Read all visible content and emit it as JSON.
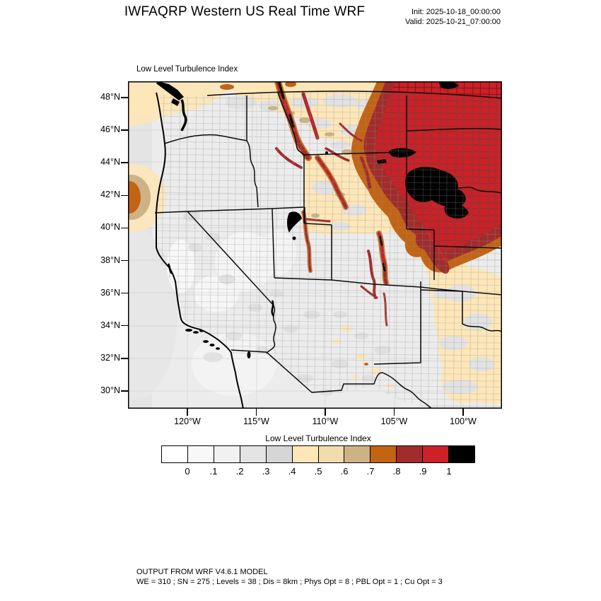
{
  "header": {
    "title": "IWFAQRP Western US Real Time WRF",
    "init_time": "Init: 2025-10-18_00:00:00",
    "valid_time": "Valid: 2025-10-21_07:00:00"
  },
  "map": {
    "field_label": "Low Level Turbulence Index",
    "lat_ticks": [
      "48°N",
      "46°N",
      "44°N",
      "42°N",
      "40°N",
      "38°N",
      "36°N",
      "34°N",
      "32°N",
      "30°N"
    ],
    "lon_ticks": [
      "120°W",
      "115°W",
      "110°W",
      "105°W",
      "100°W"
    ],
    "base_color": "#ececec",
    "ocean_color": "#e2e2e2"
  },
  "colorbar": {
    "title": "Low Level Turbulence Index",
    "tick_labels": [
      "0",
      ".1",
      ".2",
      ".3",
      ".4",
      ".5",
      ".6",
      ".7",
      ".8",
      ".9",
      "1"
    ],
    "colors": [
      "#ffffff",
      "#f8f8f8",
      "#f1f1f1",
      "#e4e4e4",
      "#d6d6d6",
      "#fde6b8",
      "#f2dcae",
      "#cdb286",
      "#c26414",
      "#a02c2c",
      "#cb2127",
      "#000000"
    ]
  },
  "footer": {
    "line1": "OUTPUT FROM WRF V4.6.1 MODEL",
    "line2": "WE = 310 ; SN = 275 ; Levels = 38 ; Dis = 8km ; Phys Opt = 8 ; PBL Opt = 1 ; Cu Opt = 3"
  }
}
